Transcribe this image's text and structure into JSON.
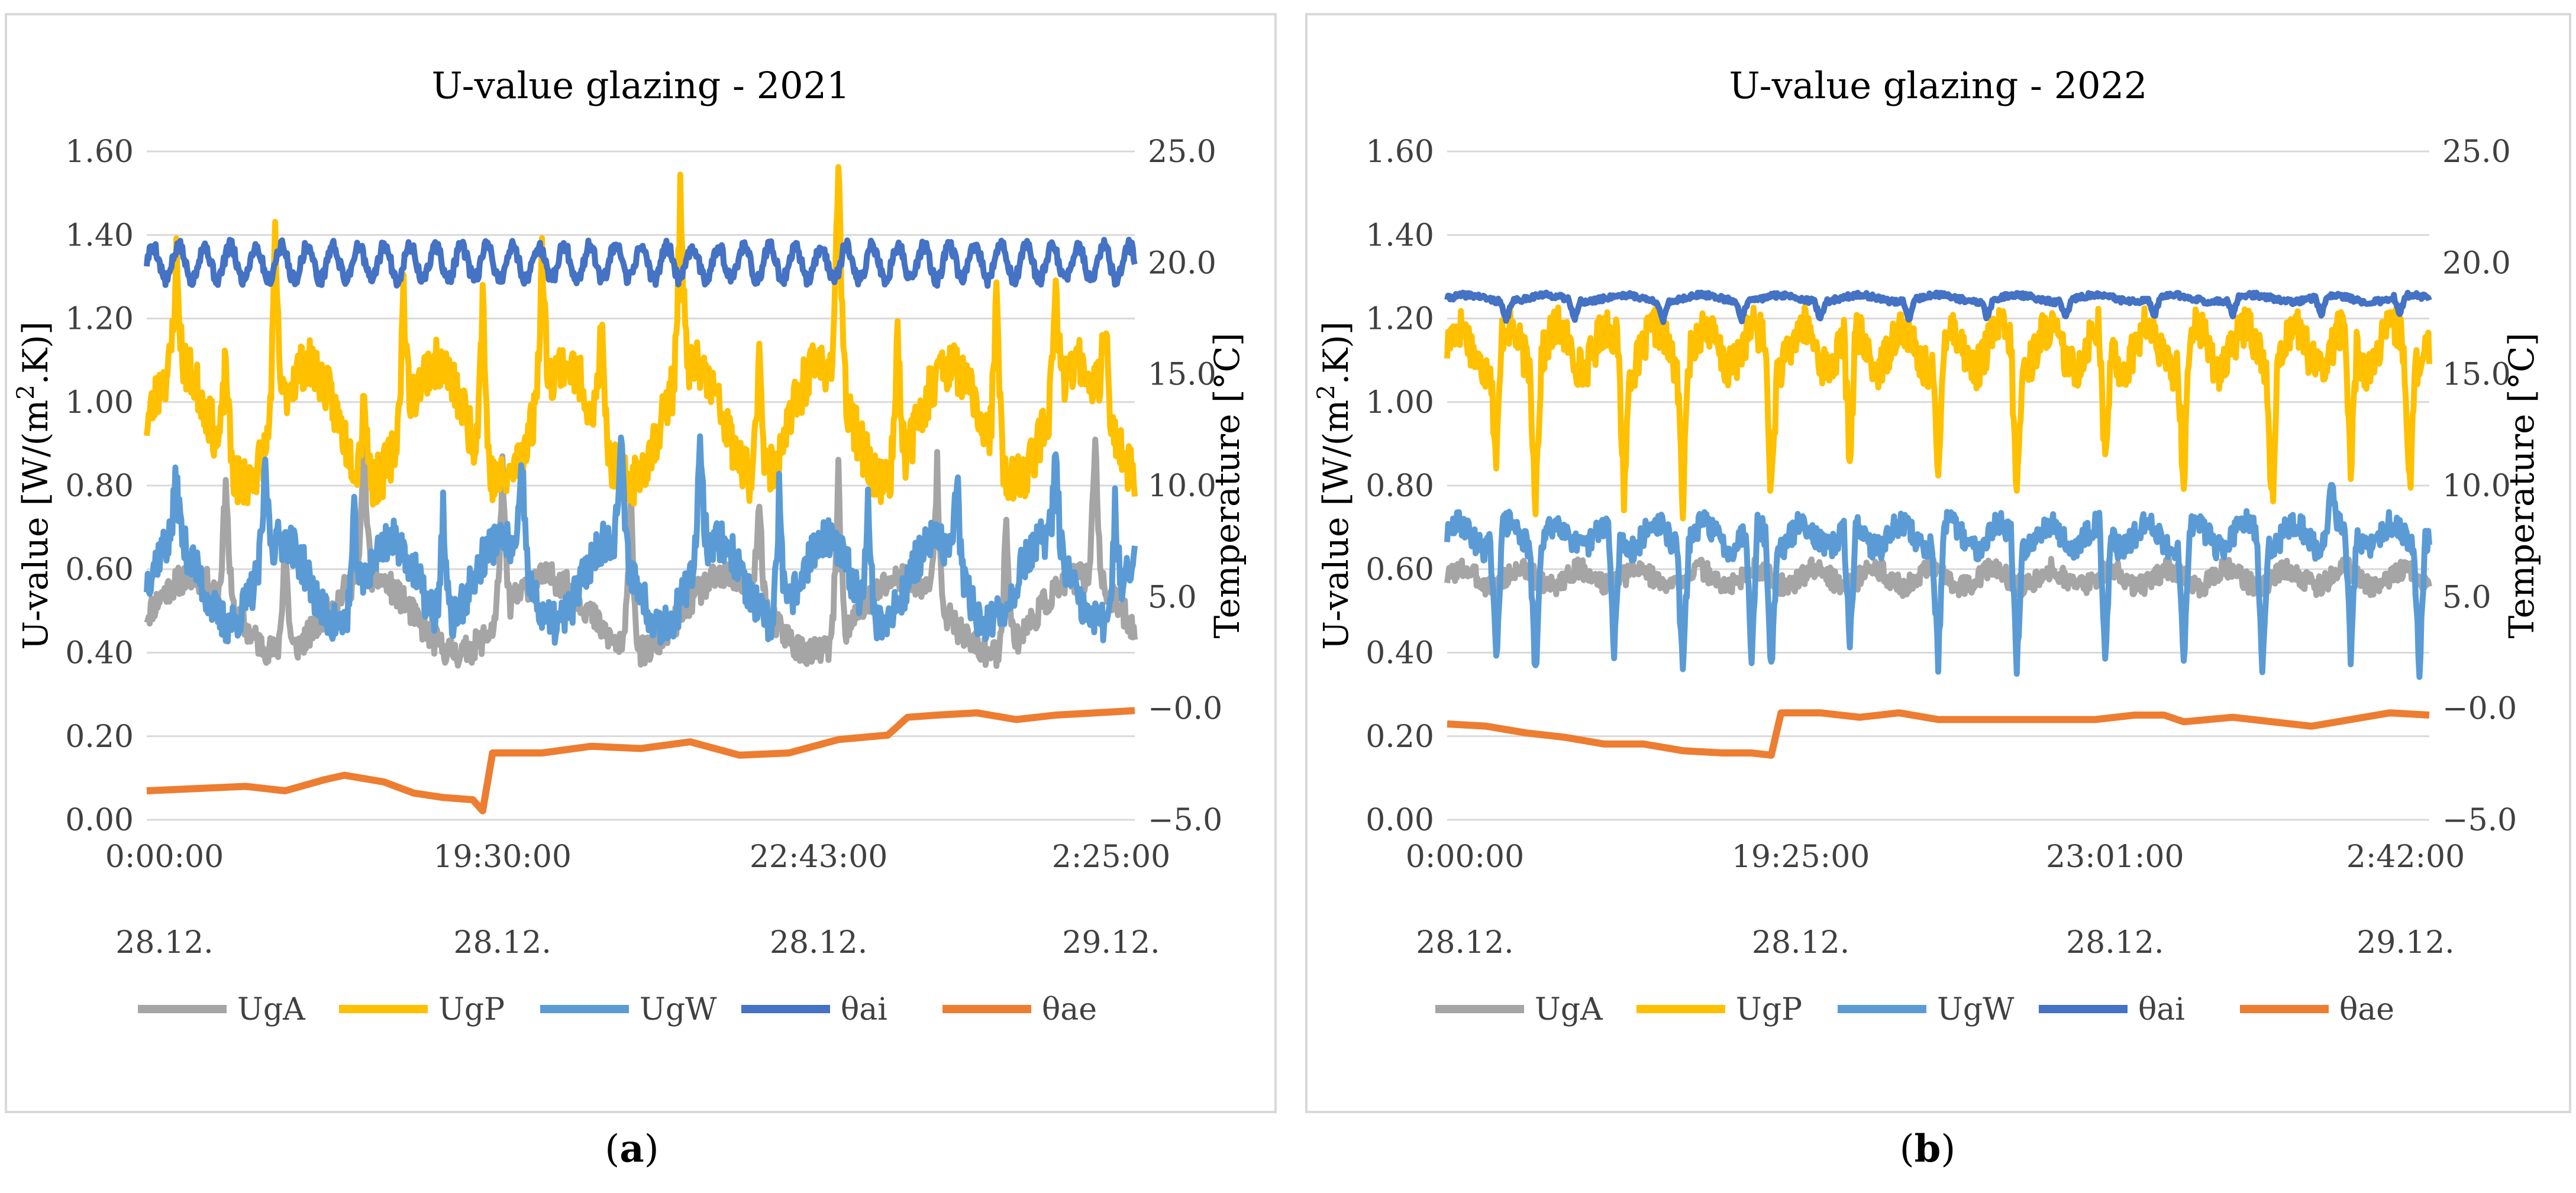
{
  "figure": {
    "panels": [
      {
        "id": "a",
        "label_open": "(",
        "label_letter": "a",
        "label_close": ")"
      },
      {
        "id": "b",
        "label_open": "(",
        "label_letter": "b",
        "label_close": ")"
      }
    ]
  },
  "colors": {
    "UgA": "#a5a5a5",
    "UgP": "#ffc000",
    "UgW": "#5b9bd5",
    "θai": "#4472c4",
    "θae": "#ed7d31",
    "grid": "#d9d9d9"
  },
  "chart_data": [
    {
      "type": "line",
      "title": "U-value glazing - 2021",
      "ylabel": "U-value [W/(m².K)]",
      "ylabel_main": "U-value [W/(m",
      "ylabel_sup": "2",
      "ylabel_tail": ".K)]",
      "y2label": "Temperature [°C]",
      "ylim": [
        0,
        1.6
      ],
      "y2lim": [
        -5,
        25
      ],
      "yticks": [
        "0.00",
        "0.20",
        "0.40",
        "0.60",
        "0.80",
        "1.00",
        "1.20",
        "1.40",
        "1.60"
      ],
      "y2ticks": [
        "−5.0",
        "−0.0",
        "5.0",
        "10.0",
        "15.0",
        "20.0",
        "25.0"
      ],
      "xticks": [
        {
          "time": "0:00:00",
          "date": "28.12."
        },
        {
          "time": "19:30:00",
          "date": "28.12."
        },
        {
          "time": "22:43:00",
          "date": "28.12."
        },
        {
          "time": "2:25:00",
          "date": "29.12."
        }
      ],
      "grid": true,
      "legend": "bottom",
      "series": [
        {
          "name": "UgA",
          "axis": "left",
          "model": {
            "base": 0.49,
            "amp": 0.09,
            "period": 18,
            "spikes": [
              [
                8,
                0.8
              ],
              [
                14,
                0.77
              ],
              [
                22,
                0.82
              ],
              [
                36,
                0.84
              ],
              [
                49,
                0.88
              ],
              [
                62,
                0.74
              ],
              [
                70,
                0.9
              ],
              [
                80,
                0.82
              ],
              [
                87,
                0.81
              ],
              [
                96,
                0.85
              ]
            ],
            "noise": 0.035,
            "seed": 11
          }
        },
        {
          "name": "UgP",
          "axis": "left",
          "model": {
            "base": 0.95,
            "amp": 0.14,
            "period": 13,
            "spikes": [
              [
                3,
                1.21
              ],
              [
                8,
                1.21
              ],
              [
                13,
                1.39
              ],
              [
                22,
                1.17
              ],
              [
                26,
                1.28
              ],
              [
                34,
                1.38
              ],
              [
                40,
                1.3
              ],
              [
                46,
                1.23
              ],
              [
                54,
                1.38
              ],
              [
                62,
                1.31
              ],
              [
                70,
                1.5
              ],
              [
                76,
                1.32
              ],
              [
                86,
                1.38
              ],
              [
                92,
                1.19
              ],
              [
                97,
                1.18
              ]
            ],
            "noise": 0.06,
            "seed": 23
          }
        },
        {
          "name": "UgW",
          "axis": "left",
          "model": {
            "base": 0.57,
            "amp": 0.1,
            "period": 11,
            "spikes": [
              [
                3,
                0.73
              ],
              [
                12,
                0.79
              ],
              [
                21,
                0.78
              ],
              [
                30,
                0.85
              ],
              [
                38,
                0.83
              ],
              [
                48,
                0.84
              ],
              [
                56,
                0.88
              ],
              [
                64,
                0.87
              ],
              [
                73,
                0.86
              ],
              [
                82,
                0.8
              ],
              [
                92,
                0.8
              ],
              [
                98,
                0.8
              ]
            ],
            "noise": 0.05,
            "seed": 37
          }
        },
        {
          "name": "θai",
          "axis": "right",
          "model": {
            "base": 20.0,
            "amp": 0.75,
            "period": 2.6,
            "spikes": [],
            "noise": 0.3,
            "seed": 5
          }
        },
        {
          "name": "θae",
          "axis": "right",
          "points": [
            [
              0,
              -3.7
            ],
            [
              5,
              -3.6
            ],
            [
              10,
              -3.5
            ],
            [
              14,
              -3.7
            ],
            [
              18,
              -3.2
            ],
            [
              20,
              -3.0
            ],
            [
              24,
              -3.3
            ],
            [
              27,
              -3.8
            ],
            [
              30,
              -4.0
            ],
            [
              33,
              -4.1
            ],
            [
              34,
              -4.6
            ],
            [
              35,
              -2.0
            ],
            [
              40,
              -2.0
            ],
            [
              45,
              -1.7
            ],
            [
              50,
              -1.8
            ],
            [
              55,
              -1.5
            ],
            [
              60,
              -2.1
            ],
            [
              65,
              -2.0
            ],
            [
              70,
              -1.4
            ],
            [
              75,
              -1.2
            ],
            [
              77,
              -0.4
            ],
            [
              80,
              -0.3
            ],
            [
              84,
              -0.2
            ],
            [
              88,
              -0.5
            ],
            [
              92,
              -0.3
            ],
            [
              96,
              -0.2
            ],
            [
              100,
              -0.1
            ]
          ]
        }
      ]
    },
    {
      "type": "line",
      "title": "U-value glazing - 2022",
      "ylabel": "U-value [W/(m².K)]",
      "ylabel_main": "U-value [W/(m",
      "ylabel_sup": "2",
      "ylabel_tail": ".K)]",
      "y2label": "Temperature [°C]",
      "ylim": [
        0,
        1.6
      ],
      "y2lim": [
        -5,
        25
      ],
      "yticks": [
        "0.00",
        "0.20",
        "0.40",
        "0.60",
        "0.80",
        "1.00",
        "1.20",
        "1.40",
        "1.60"
      ],
      "y2ticks": [
        "−5.0",
        "−0.0",
        "5.0",
        "10.0",
        "15.0",
        "20.0",
        "25.0"
      ],
      "xticks": [
        {
          "time": "0:00:00",
          "date": "28.12."
        },
        {
          "time": "19:25:00",
          "date": "28.12."
        },
        {
          "time": "23:01:00",
          "date": "28.12."
        },
        {
          "time": "2:42:00",
          "date": "29.12."
        }
      ],
      "grid": true,
      "legend": "bottom",
      "series": [
        {
          "name": "UgA",
          "axis": "left",
          "model": {
            "base": 0.58,
            "amp": 0.02,
            "period": 6,
            "spikes": [],
            "noise": 0.025,
            "seed": 3
          }
        },
        {
          "name": "UgP",
          "axis": "left",
          "model": {
            "base": 1.13,
            "amp": 0.05,
            "period": 5,
            "spikes": [],
            "dips": [
              [
                5,
                0.85
              ],
              [
                9,
                0.82
              ],
              [
                18,
                0.81
              ],
              [
                24,
                0.8
              ],
              [
                33,
                0.8
              ],
              [
                41,
                0.81
              ],
              [
                50,
                0.8
              ],
              [
                58,
                0.8
              ],
              [
                67,
                0.8
              ],
              [
                75,
                0.8
              ],
              [
                84,
                0.8
              ],
              [
                92,
                0.8
              ],
              [
                98,
                0.82
              ]
            ],
            "noise": 0.05,
            "seed": 17
          }
        },
        {
          "name": "UgW",
          "axis": "left",
          "model": {
            "base": 0.68,
            "amp": 0.03,
            "period": 5,
            "spikes": [
              [
                90,
                0.83
              ]
            ],
            "dips": [
              [
                5,
                0.38
              ],
              [
                9,
                0.37
              ],
              [
                17,
                0.37
              ],
              [
                24,
                0.38
              ],
              [
                31,
                0.37
              ],
              [
                33,
                0.37
              ],
              [
                41,
                0.38
              ],
              [
                50,
                0.38
              ],
              [
                58,
                0.38
              ],
              [
                67,
                0.38
              ],
              [
                75,
                0.38
              ],
              [
                83,
                0.38
              ],
              [
                92,
                0.37
              ],
              [
                99,
                0.4
              ]
            ],
            "noise": 0.03,
            "seed": 29
          }
        },
        {
          "name": "θai",
          "axis": "right",
          "model": {
            "base": 18.4,
            "amp": 0.15,
            "period": 8,
            "spikes": [],
            "dips": [
              [
                6,
                17.5
              ],
              [
                13,
                17.6
              ],
              [
                22,
                17.5
              ],
              [
                30,
                17.6
              ],
              [
                38,
                17.6
              ],
              [
                47,
                17.5
              ],
              [
                55,
                17.6
              ],
              [
                63,
                17.6
              ],
              [
                72,
                17.5
              ],
              [
                80,
                17.6
              ],
              [
                89,
                17.5
              ],
              [
                97,
                17.6
              ]
            ],
            "noise": 0.12,
            "seed": 41
          }
        },
        {
          "name": "θae",
          "axis": "right",
          "points": [
            [
              0,
              -0.7
            ],
            [
              4,
              -0.8
            ],
            [
              8,
              -1.1
            ],
            [
              12,
              -1.3
            ],
            [
              16,
              -1.6
            ],
            [
              20,
              -1.6
            ],
            [
              24,
              -1.9
            ],
            [
              28,
              -2.0
            ],
            [
              31,
              -2.0
            ],
            [
              33,
              -2.1
            ],
            [
              34,
              -0.2
            ],
            [
              38,
              -0.2
            ],
            [
              42,
              -0.4
            ],
            [
              46,
              -0.2
            ],
            [
              50,
              -0.5
            ],
            [
              54,
              -0.5
            ],
            [
              58,
              -0.5
            ],
            [
              62,
              -0.5
            ],
            [
              66,
              -0.5
            ],
            [
              70,
              -0.3
            ],
            [
              73,
              -0.3
            ],
            [
              75,
              -0.6
            ],
            [
              80,
              -0.4
            ],
            [
              84,
              -0.6
            ],
            [
              88,
              -0.8
            ],
            [
              92,
              -0.5
            ],
            [
              96,
              -0.2
            ],
            [
              100,
              -0.3
            ]
          ]
        }
      ]
    }
  ]
}
